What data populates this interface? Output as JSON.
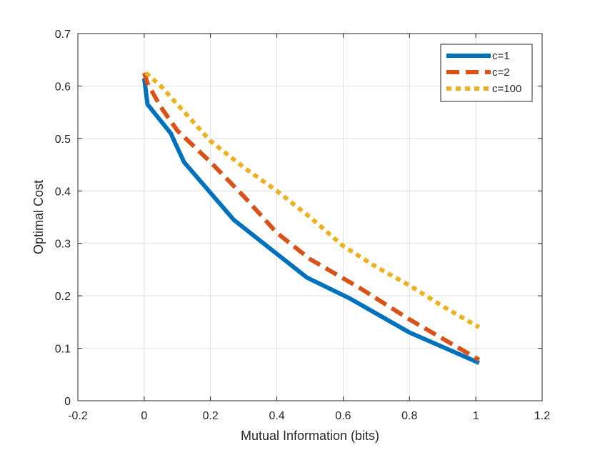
{
  "chart_data": {
    "type": "line",
    "title": "",
    "xlabel": "Mutual Information (bits)",
    "ylabel": "Optimal Cost",
    "xlim": [
      -0.2,
      1.2
    ],
    "ylim": [
      0,
      0.7
    ],
    "xticks": [
      -0.2,
      0,
      0.2,
      0.4,
      0.6,
      0.8,
      1,
      1.2
    ],
    "xtick_labels": [
      "-0.2",
      "0",
      "0.2",
      "0.4",
      "0.6",
      "0.8",
      "1",
      "1.2"
    ],
    "yticks": [
      0,
      0.1,
      0.2,
      0.3,
      0.4,
      0.5,
      0.6,
      0.7
    ],
    "ytick_labels": [
      "0",
      "0.1",
      "0.2",
      "0.3",
      "0.4",
      "0.5",
      "0.6",
      "0.7"
    ],
    "grid": true,
    "legend_position": "top-right",
    "series": [
      {
        "name": "c=1",
        "color": "#0072bd",
        "style": "solid",
        "x": [
          0.0,
          0.01,
          0.08,
          0.12,
          0.27,
          0.38,
          0.49,
          0.62,
          0.8,
          1.01
        ],
        "y": [
          0.615,
          0.565,
          0.51,
          0.455,
          0.345,
          0.29,
          0.235,
          0.195,
          0.13,
          0.072
        ]
      },
      {
        "name": "c=2",
        "color": "#d95319",
        "style": "dashed",
        "x": [
          0.0,
          0.01,
          0.05,
          0.1,
          0.2,
          0.3,
          0.4,
          0.5,
          0.65,
          0.8,
          1.01
        ],
        "y": [
          0.625,
          0.605,
          0.56,
          0.515,
          0.455,
          0.39,
          0.32,
          0.27,
          0.215,
          0.155,
          0.078
        ]
      },
      {
        "name": "c=100",
        "color": "#edb120",
        "style": "dotted",
        "x": [
          0.005,
          0.05,
          0.1,
          0.2,
          0.3,
          0.4,
          0.5,
          0.6,
          0.7,
          0.8,
          0.9,
          1.01
        ],
        "y": [
          0.625,
          0.6,
          0.565,
          0.495,
          0.445,
          0.4,
          0.35,
          0.295,
          0.255,
          0.22,
          0.18,
          0.14
        ]
      }
    ]
  }
}
